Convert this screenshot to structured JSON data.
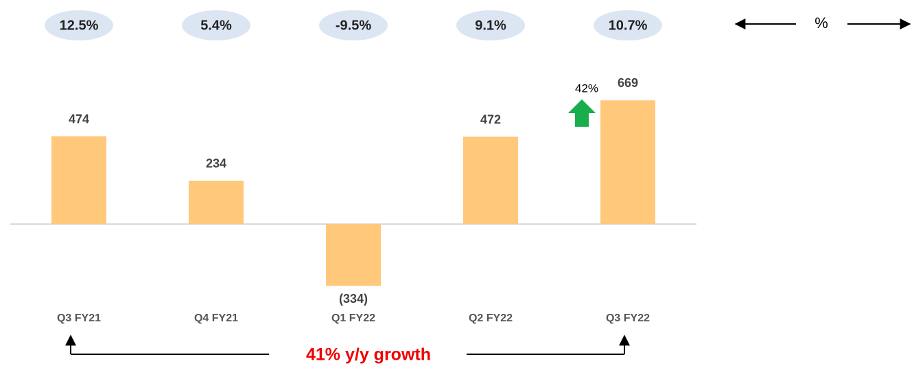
{
  "chart_data": {
    "type": "bar",
    "categories": [
      "Q3 FY21",
      "Q4 FY21",
      "Q1 FY22",
      "Q2 FY22",
      "Q3 FY22"
    ],
    "values": [
      474,
      234,
      -334,
      472,
      669
    ],
    "value_labels": [
      "474",
      "234",
      "(334)",
      "472",
      "669"
    ],
    "color": "#ffc87a",
    "ylim": [
      -400,
      800
    ],
    "percent_values": [
      12.5,
      5.4,
      -9.5,
      9.1,
      10.7
    ],
    "percent_labels": [
      "12.5%",
      "5.4%",
      "-9.5%",
      "9.1%",
      "10.7%"
    ],
    "percent_color": "#dce6f2",
    "annotations": {
      "percent_unit": "%",
      "growth_badge": "42%",
      "growth_note": "41% y/y growth"
    }
  }
}
